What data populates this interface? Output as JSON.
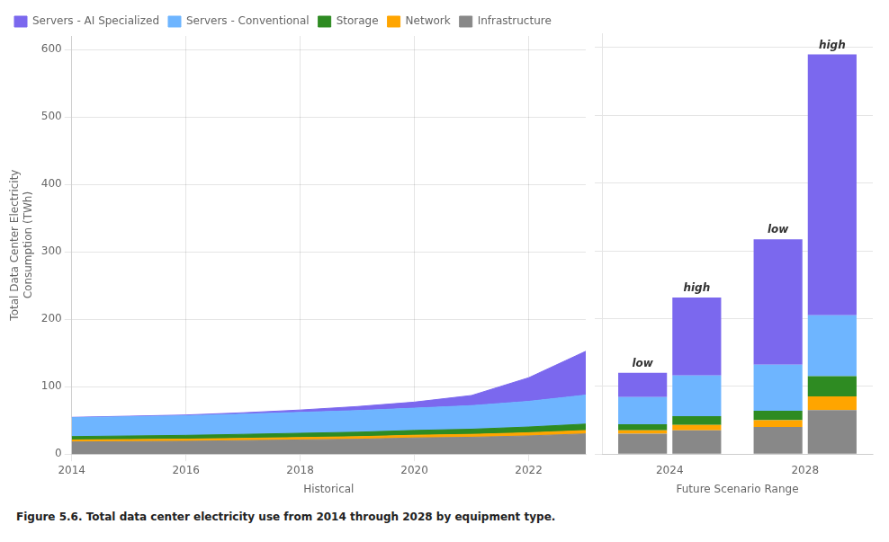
{
  "chart_data": [
    {
      "type": "area",
      "stacked": true,
      "x": [
        2014,
        2015,
        2016,
        2017,
        2018,
        2019,
        2020,
        2021,
        2022,
        2023
      ],
      "series": [
        {
          "name": "Infrastructure",
          "color": "#888888",
          "values": [
            18,
            18.5,
            19,
            20,
            21,
            22,
            24,
            25,
            27,
            30
          ]
        },
        {
          "name": "Network",
          "color": "#FFA500",
          "values": [
            3,
            3.1,
            3.2,
            3.4,
            3.6,
            3.8,
            4.0,
            4.3,
            4.7,
            5.0
          ]
        },
        {
          "name": "Storage",
          "color": "#2E8B22",
          "values": [
            5,
            5.3,
            5.6,
            5.9,
            6.3,
            6.7,
            7.1,
            7.6,
            8.5,
            9.5
          ]
        },
        {
          "name": "Servers - Conventional",
          "color": "#6EB5FF",
          "values": [
            28,
            28.5,
            29,
            30,
            31,
            32,
            33,
            35,
            38,
            43
          ]
        },
        {
          "name": "Servers - AI Specialized",
          "color": "#7B68EE",
          "values": [
            0.5,
            0.8,
            1.2,
            2.0,
            3.5,
            6.0,
            9.0,
            15,
            35,
            65
          ]
        }
      ],
      "xlim": [
        2014,
        2023
      ],
      "xticks": [
        2014,
        2016,
        2018,
        2020,
        2022
      ],
      "ylim": [
        0,
        620
      ],
      "yticks": [
        0,
        100,
        200,
        300,
        400,
        500,
        600
      ],
      "xlabel": "Historical",
      "ylabel": "Total Data Center Electricity\nConsumption (TWh)",
      "legend": "upper left",
      "grid": true
    },
    {
      "type": "bar",
      "stacked": true,
      "categories": [
        "2024",
        "2028"
      ],
      "scenarios": [
        {
          "name": "low",
          "series": [
            {
              "name": "Infrastructure",
              "color": "#888888",
              "values": [
                30,
                40
              ]
            },
            {
              "name": "Network",
              "color": "#FFA500",
              "values": [
                5,
                10
              ]
            },
            {
              "name": "Storage",
              "color": "#2E8B22",
              "values": [
                9,
                14
              ]
            },
            {
              "name": "Servers - Conventional",
              "color": "#6EB5FF",
              "values": [
                40,
                68
              ]
            },
            {
              "name": "Servers - AI Specialized",
              "color": "#7B68EE",
              "values": [
                36,
                185
              ]
            }
          ]
        },
        {
          "name": "high",
          "series": [
            {
              "name": "Infrastructure",
              "color": "#888888",
              "values": [
                35,
                65
              ]
            },
            {
              "name": "Network",
              "color": "#FFA500",
              "values": [
                8,
                20
              ]
            },
            {
              "name": "Storage",
              "color": "#2E8B22",
              "values": [
                13,
                30
              ]
            },
            {
              "name": "Servers - Conventional",
              "color": "#6EB5FF",
              "values": [
                60,
                90
              ]
            },
            {
              "name": "Servers - AI Specialized",
              "color": "#7B68EE",
              "values": [
                115,
                385
              ]
            }
          ]
        }
      ],
      "xlabel": "Future Scenario Range",
      "ylim": [
        0,
        620
      ],
      "yticks": [
        0,
        100,
        200,
        300,
        400,
        500,
        600
      ],
      "grid": "y",
      "tick_labels": "x"
    }
  ],
  "caption": "Figure 5.6. Total data center electricity use from 2014 through 2028 by equipment type."
}
